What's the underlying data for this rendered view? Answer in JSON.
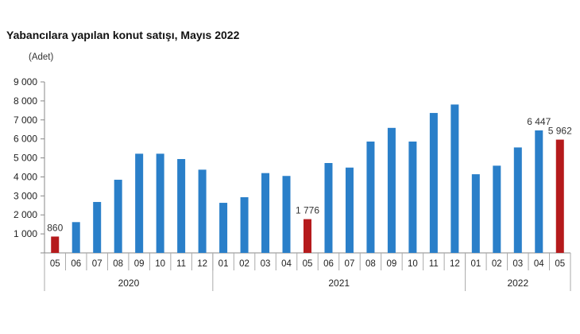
{
  "chart_data": {
    "type": "bar",
    "title": "Yabancılara yapılan konut satışı, Mayıs 2022",
    "ylabel": "(Adet)",
    "ylim": [
      0,
      9000
    ],
    "yticks": [
      "1 000",
      "2 000",
      "3 000",
      "4 000",
      "5 000",
      "6 000",
      "7 000",
      "8 000",
      "9 000"
    ],
    "grid": false,
    "categories": [
      "05",
      "06",
      "07",
      "08",
      "09",
      "10",
      "11",
      "12",
      "01",
      "02",
      "03",
      "04",
      "05",
      "06",
      "07",
      "08",
      "09",
      "10",
      "11",
      "12",
      "01",
      "02",
      "03",
      "04",
      "05"
    ],
    "years": [
      {
        "label": "2020",
        "count": 8
      },
      {
        "label": "2021",
        "count": 12
      },
      {
        "label": "2022",
        "count": 5
      }
    ],
    "values": [
      860,
      1620,
      2680,
      3850,
      5220,
      5220,
      4940,
      4380,
      2635,
      2930,
      4200,
      4050,
      1776,
      4730,
      4490,
      5860,
      6580,
      5860,
      7365,
      7810,
      4140,
      4590,
      5550,
      6447,
      5962
    ],
    "highlight": [
      0,
      12,
      24
    ],
    "data_labels": {
      "0": "860",
      "12": "1 776",
      "23": "6 447",
      "24": "5 962"
    },
    "colors": {
      "bar": "#2a7fc9",
      "highlight": "#b51a1c"
    }
  }
}
